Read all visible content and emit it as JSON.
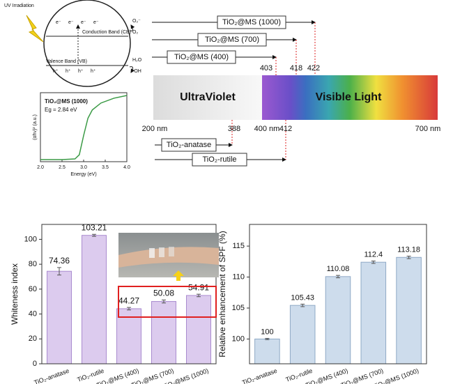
{
  "diagram": {
    "uv_label": "UV Irradiation",
    "electrons": [
      "e⁻",
      "e⁻",
      "e⁻",
      "e⁻"
    ],
    "cb_label": "Conduction Band (CB)",
    "vb_label": "Valence Band (VB)",
    "holes": [
      "h⁺",
      "h⁺",
      "h⁺",
      "h⁺"
    ],
    "products_top": [
      "O₂⁻",
      "O₂"
    ],
    "products_bottom": [
      "H₂O",
      "·OH"
    ]
  },
  "spectrum": {
    "regions": [
      "UltraViolet",
      "Visible Light"
    ],
    "scale_labels": [
      "200 nm",
      "400 nm",
      "700 nm"
    ],
    "upper": [
      {
        "label": "TiO₂@MS (1000)",
        "edge": "422"
      },
      {
        "label": "TiO₂@MS (700)",
        "edge": "418"
      },
      {
        "label": "TiO₂@MS (400)",
        "edge": "403"
      }
    ],
    "lower": [
      {
        "label": "TiO₂-anatase",
        "edge": "388"
      },
      {
        "label": "TiO₂-rutile",
        "edge": "412"
      }
    ]
  },
  "chart_data": [
    {
      "type": "line",
      "title": "TiO₂@MS (1000)",
      "annotation": "Eg = 2.84 eV",
      "x_label": "Energy (eV)",
      "y_label": "(αhν)² (a.u.)",
      "x": [
        2.0,
        2.5,
        2.8,
        2.9,
        3.0,
        3.1,
        3.2,
        3.4,
        3.7,
        4.0
      ],
      "values": [
        0.03,
        0.03,
        0.04,
        0.1,
        0.38,
        0.63,
        0.75,
        0.85,
        0.92,
        0.96
      ],
      "color": "#3a9a45",
      "xlim": [
        2,
        4
      ],
      "ylim": [
        0,
        1
      ],
      "xticks": [
        {
          "value": 2,
          "label": "2.0"
        },
        2.5,
        {
          "value": 3,
          "label": "3.0"
        },
        3.5,
        {
          "value": 4,
          "label": "4.0"
        }
      ]
    },
    {
      "type": "bar",
      "y_label": "Whiteness index",
      "categories": [
        "TiO₂-anatase",
        "TiO₂-rutile",
        "TiO₂@MS (400)",
        "TiO₂@MS (700)",
        "TiO₂@MS (1000)"
      ],
      "values": [
        74.36,
        103.21,
        44.27,
        50.08,
        54.91
      ],
      "errors": [
        3,
        0.8,
        1,
        1.2,
        1
      ],
      "color": "#dccbee",
      "edge_color": "#a98bcf",
      "ylim": [
        0,
        112
      ],
      "yticks": [
        0,
        20,
        40,
        60,
        80,
        100
      ]
    },
    {
      "type": "bar",
      "y_label": "Relative enhancement of SPF (%)",
      "categories": [
        "TiO₂-anatase",
        "TiO₂-rutile",
        "TiO₂@MS (400)",
        "TiO₂@MS (700)",
        "TiO₂@MS (1000)"
      ],
      "values": [
        100,
        105.43,
        110.08,
        112.4,
        113.18
      ],
      "errors": [
        0.1,
        0.2,
        0.2,
        0.2,
        0.2
      ],
      "color": "#cddcec",
      "edge_color": "#8fa9c6",
      "ylim": [
        96,
        118.5
      ],
      "yticks": [
        100,
        105,
        110,
        115
      ]
    }
  ]
}
